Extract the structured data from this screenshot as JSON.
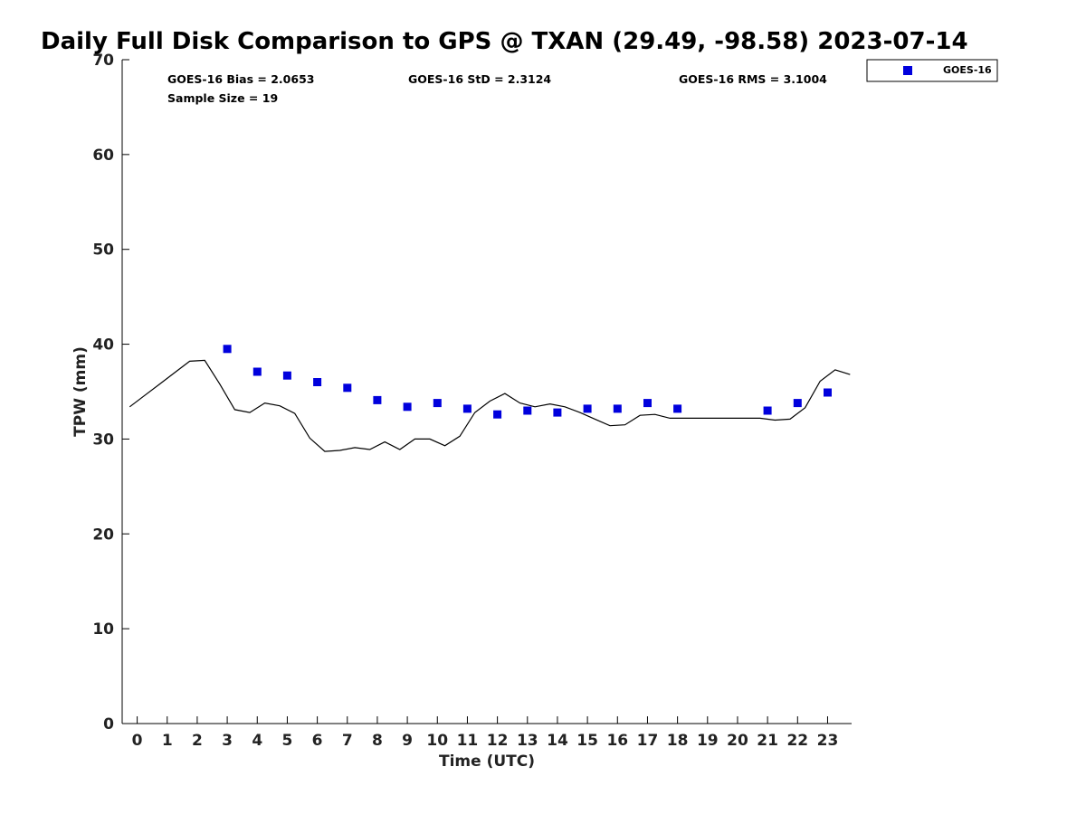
{
  "chart_data": {
    "type": "scatter",
    "title": "Daily Full Disk Comparison to GPS @ TXAN (29.49, -98.58) 2023-07-14",
    "xlabel": "Time (UTC)",
    "ylabel": "TPW (mm)",
    "xlim": [
      -0.5,
      23.8
    ],
    "ylim": [
      0,
      70
    ],
    "x_ticks": [
      "0",
      "1",
      "2",
      "3",
      "4",
      "5",
      "6",
      "7",
      "8",
      "9",
      "10",
      "11",
      "12",
      "13",
      "14",
      "15",
      "16",
      "17",
      "18",
      "19",
      "20",
      "21",
      "22",
      "23"
    ],
    "y_ticks": [
      "0",
      "10",
      "20",
      "30",
      "40",
      "50",
      "60",
      "70"
    ],
    "grid": false,
    "legend_position": "top-right-outside",
    "stats": {
      "bias": "GOES-16 Bias = 2.0653",
      "std": "GOES-16 StD = 2.3124",
      "rms": "GOES-16 RMS = 3.1004",
      "sample": "Sample Size = 19"
    },
    "series": [
      {
        "name": "GOES-16",
        "kind": "scatter",
        "marker": "square",
        "color": "#0000dd",
        "x": [
          3,
          4,
          5,
          6,
          7,
          8,
          9,
          10,
          11,
          12,
          13,
          14,
          15,
          16,
          17,
          18,
          21,
          22,
          23
        ],
        "y": [
          39.5,
          37.1,
          36.7,
          36.0,
          35.4,
          34.1,
          33.4,
          33.8,
          33.2,
          32.6,
          33.0,
          32.8,
          33.2,
          33.2,
          33.8,
          33.2,
          33.0,
          33.8,
          34.9
        ]
      },
      {
        "kind": "line",
        "color": "#000000",
        "x": [
          -0.25,
          0.25,
          0.75,
          1.25,
          1.75,
          2.25,
          2.75,
          3.25,
          3.75,
          4.25,
          4.75,
          5.25,
          5.75,
          6.25,
          6.75,
          7.25,
          7.75,
          8.25,
          8.75,
          9.25,
          9.75,
          10.25,
          10.75,
          11.25,
          11.75,
          12.25,
          12.75,
          13.25,
          13.75,
          14.25,
          14.75,
          15.25,
          15.75,
          16.25,
          16.75,
          17.25,
          17.75,
          18.25,
          18.75,
          19.25,
          19.75,
          20.25,
          20.75,
          21.25,
          21.75,
          22.25,
          22.75,
          23.25,
          23.75
        ],
        "y": [
          33.4,
          34.6,
          35.8,
          37.0,
          38.2,
          38.3,
          35.8,
          33.1,
          32.8,
          33.8,
          33.5,
          32.7,
          30.1,
          28.7,
          28.8,
          29.1,
          28.9,
          29.7,
          28.9,
          30.0,
          30.0,
          29.3,
          30.3,
          32.8,
          34.0,
          34.8,
          33.8,
          33.4,
          33.7,
          33.4,
          32.8,
          32.1,
          31.4,
          31.5,
          32.5,
          32.6,
          32.2,
          32.2,
          32.2,
          32.2,
          32.2,
          32.2,
          32.2,
          32.0,
          32.1,
          33.3,
          36.1,
          37.3,
          36.8
        ]
      }
    ]
  }
}
